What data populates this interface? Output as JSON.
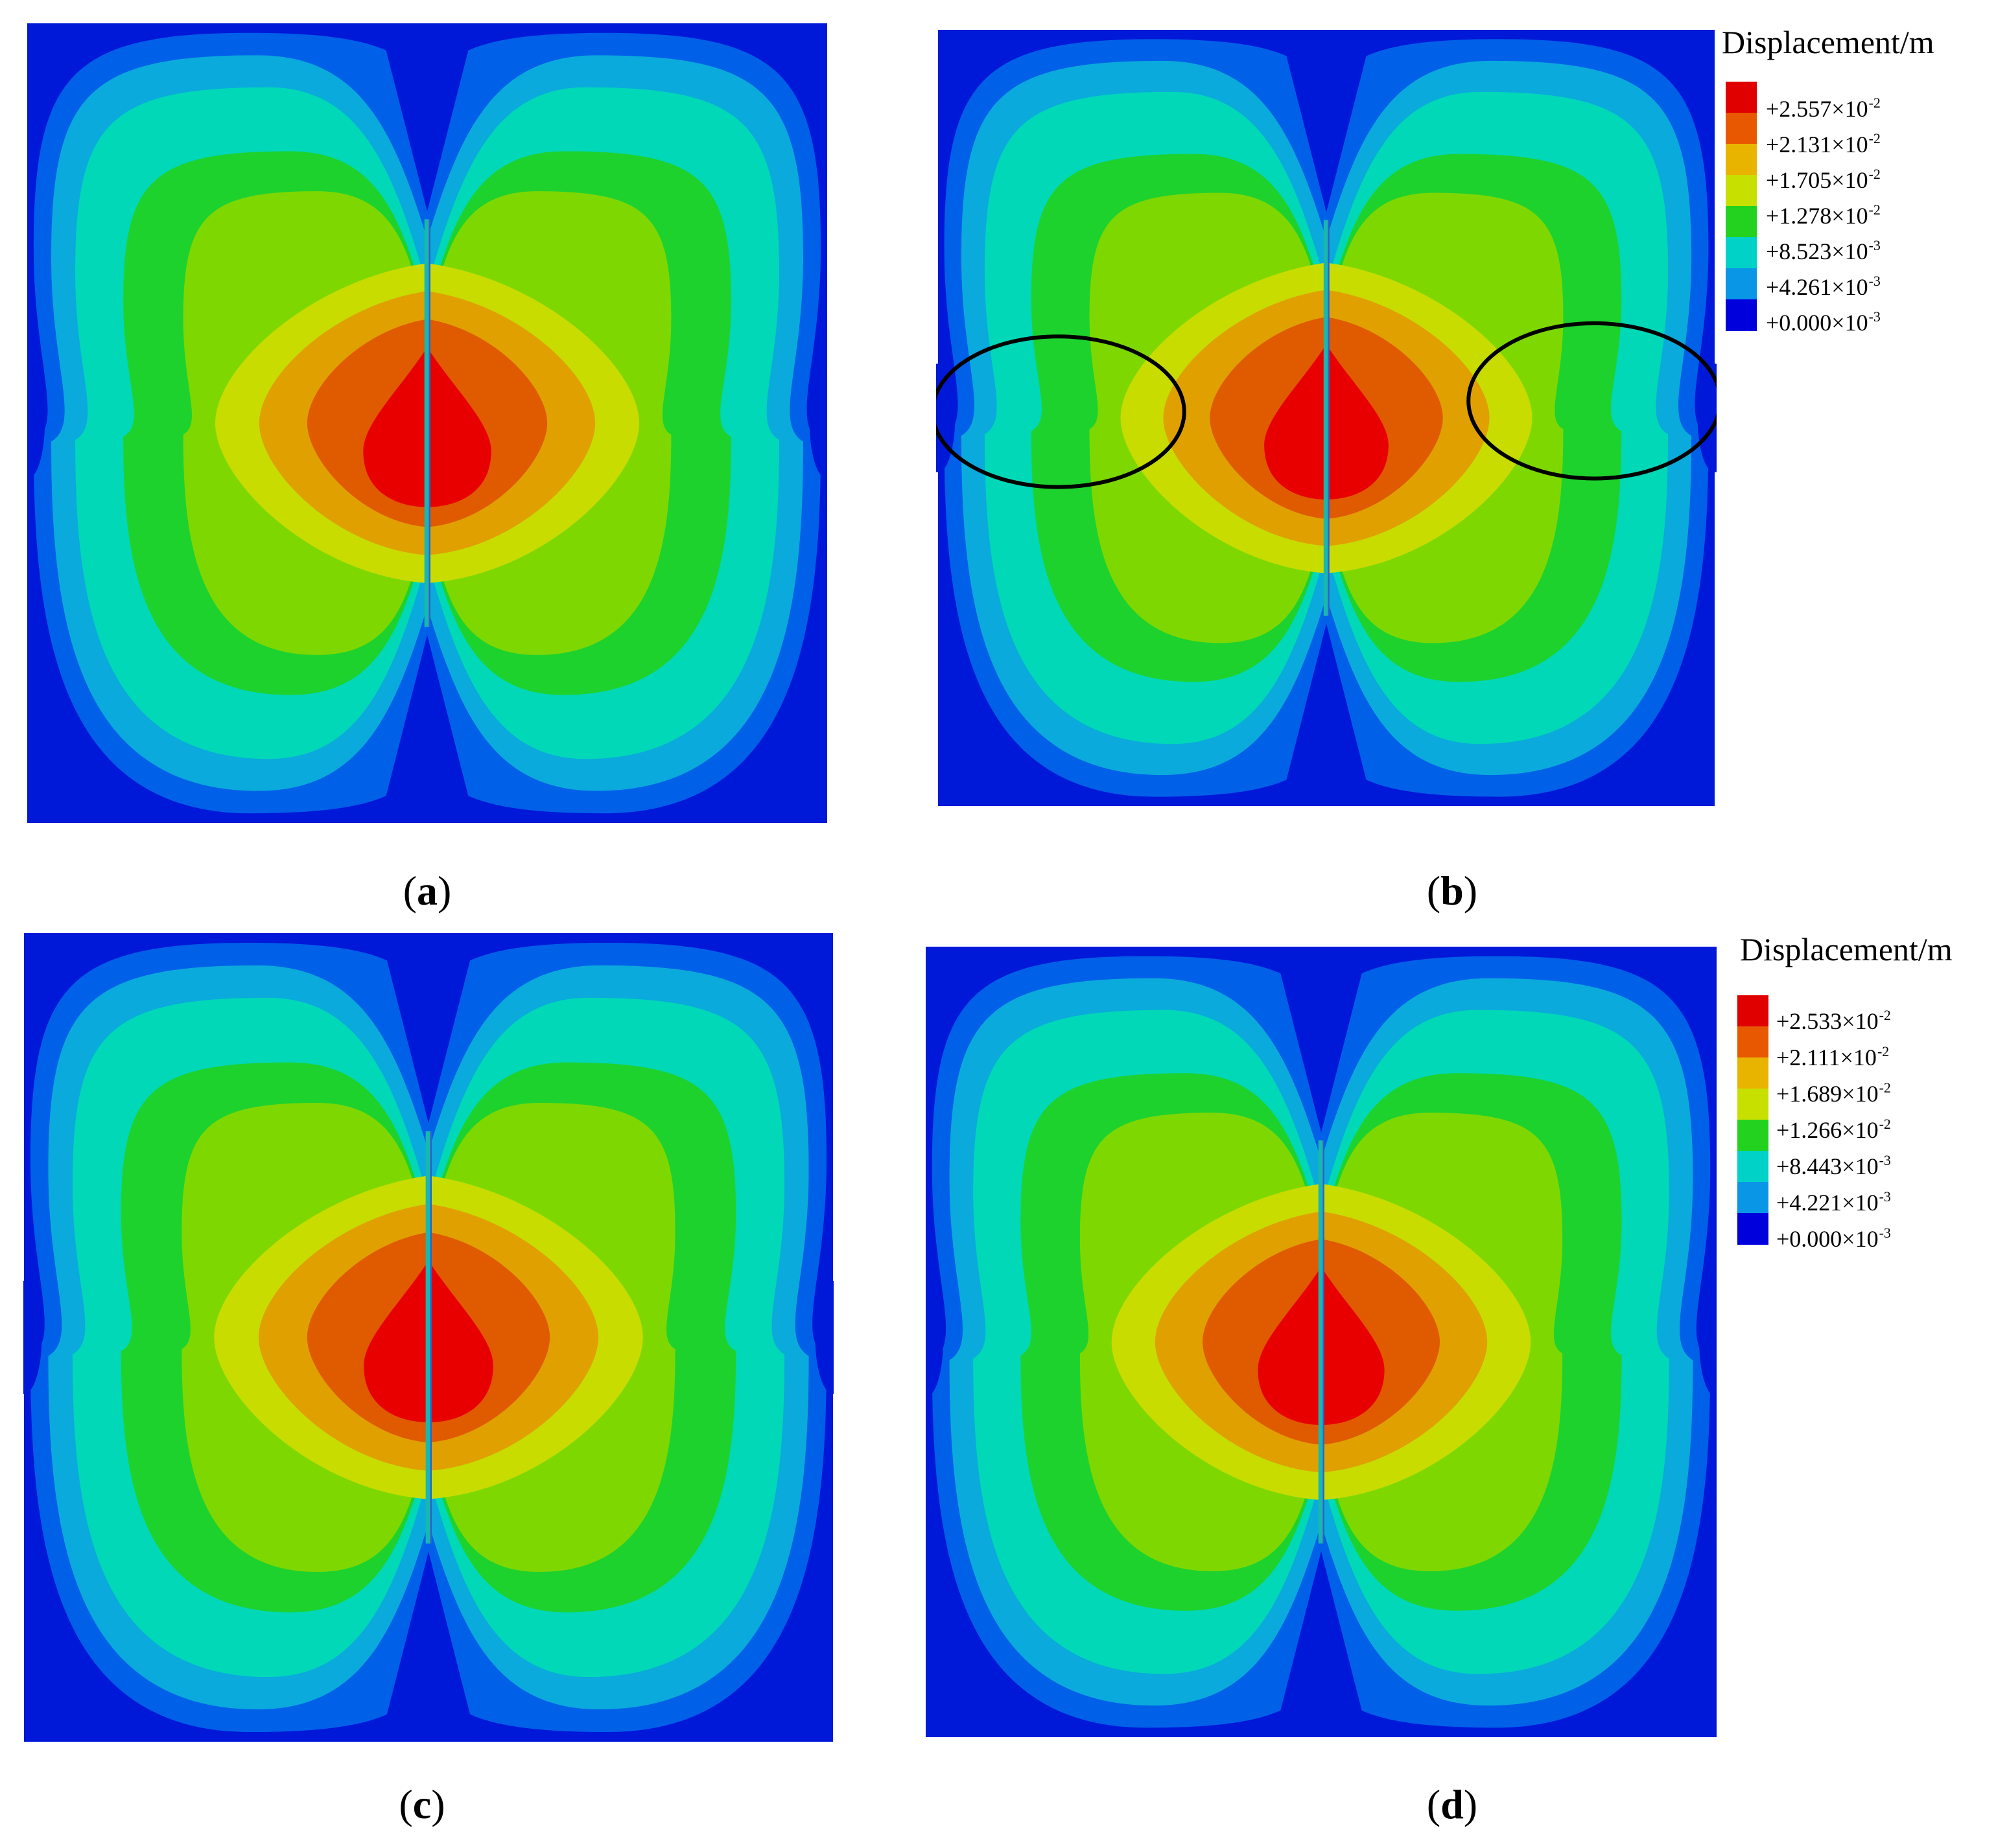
{
  "figure": {
    "panels": [
      {
        "id": "a",
        "caption": "a"
      },
      {
        "id": "b",
        "caption": "b"
      },
      {
        "id": "c",
        "caption": "c"
      },
      {
        "id": "d",
        "caption": "d"
      }
    ],
    "legend_b": {
      "title": "Displacement/m",
      "entries": [
        {
          "mantissa": "+2.557×10",
          "exp": "-2"
        },
        {
          "mantissa": "+2.131×10",
          "exp": "-2"
        },
        {
          "mantissa": "+1.705×10",
          "exp": "-2"
        },
        {
          "mantissa": "+1.278×10",
          "exp": "-2"
        },
        {
          "mantissa": "+8.523×10",
          "exp": "-3"
        },
        {
          "mantissa": "+4.261×10",
          "exp": "-3"
        },
        {
          "mantissa": "+0.000×10",
          "exp": "-3"
        }
      ]
    },
    "legend_d": {
      "title": "Displacement/m",
      "entries": [
        {
          "mantissa": "+2.533×10",
          "exp": "-2"
        },
        {
          "mantissa": "+2.111×10",
          "exp": "-2"
        },
        {
          "mantissa": "+1.689×10",
          "exp": "-2"
        },
        {
          "mantissa": "+1.266×10",
          "exp": "-2"
        },
        {
          "mantissa": "+8.443×10",
          "exp": "-3"
        },
        {
          "mantissa": "+4.221×10",
          "exp": "-3"
        },
        {
          "mantissa": "+0.000×10",
          "exp": "-3"
        }
      ]
    },
    "colors": {
      "band_colors": [
        "#e80000",
        "#e05a00",
        "#e0a000",
        "#c8dc00",
        "#7ed800",
        "#1ed22e",
        "#00d8b8",
        "#0aaadc",
        "#0060e8",
        "#0018d8"
      ],
      "legend_colors": [
        "#e00000",
        "#e85800",
        "#e8b400",
        "#c8e000",
        "#22d21e",
        "#00d2c8",
        "#0a96e6",
        "#0000dc"
      ],
      "annotation_outline": "#000000"
    }
  }
}
